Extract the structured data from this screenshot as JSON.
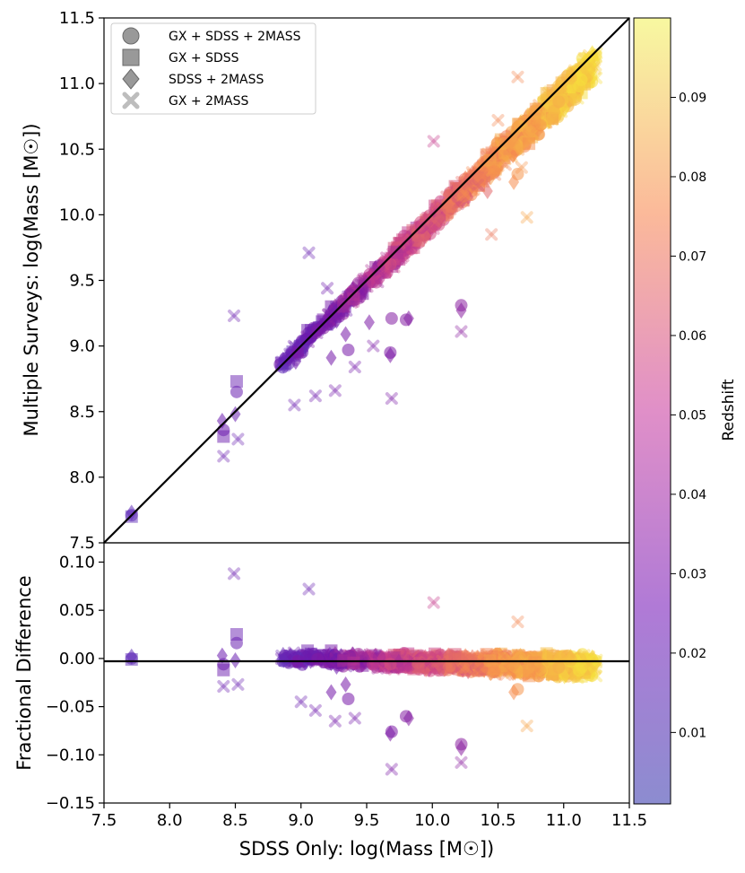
{
  "chart_data": [
    {
      "type": "scatter",
      "panel": "top",
      "ylabel": "Multiple Surveys: log(Mass [M☉])",
      "xlim": [
        7.5,
        11.5
      ],
      "ylim": [
        7.5,
        11.5
      ],
      "xticks": [
        "7.5",
        "8.0",
        "8.5",
        "9.0",
        "9.5",
        "10.0",
        "10.5",
        "11.0",
        "11.5"
      ],
      "yticks": [
        "7.5",
        "8.0",
        "8.5",
        "9.0",
        "9.5",
        "10.0",
        "10.5",
        "11.0",
        "11.5"
      ],
      "reference_line": "y = x",
      "legend": {
        "position": "top-left",
        "entries": [
          {
            "label": "GX + SDSS + 2MASS",
            "marker": "circle"
          },
          {
            "label": "GX + SDSS",
            "marker": "square"
          },
          {
            "label": "SDSS + 2MASS",
            "marker": "diamond"
          },
          {
            "label": "GX + 2MASS",
            "marker": "x"
          }
        ]
      },
      "series": [
        {
          "name": "GX + SDSS + 2MASS",
          "marker": "circle",
          "points": [
            [
              7.71,
              7.71,
              0.012
            ],
            [
              8.51,
              8.65,
              0.018
            ],
            [
              8.41,
              8.36,
              0.02
            ],
            [
              8.84,
              8.86,
              0.022
            ],
            [
              8.93,
              8.95,
              0.02
            ],
            [
              9.02,
              9.01,
              0.018
            ],
            [
              9.06,
              9.1,
              0.02
            ],
            [
              9.15,
              9.14,
              0.021
            ],
            [
              9.25,
              9.27,
              0.023
            ],
            [
              9.31,
              9.34,
              0.022
            ],
            [
              9.39,
              9.4,
              0.024
            ],
            [
              9.46,
              9.41,
              0.025
            ],
            [
              9.55,
              9.52,
              0.027
            ],
            [
              9.66,
              9.62,
              0.028
            ],
            [
              9.73,
              9.75,
              0.03
            ],
            [
              9.36,
              8.97,
              0.025
            ],
            [
              9.69,
              9.21,
              0.028
            ],
            [
              9.8,
              9.2,
              0.028
            ],
            [
              10.22,
              9.31,
              0.03
            ],
            [
              9.68,
              8.95,
              0.026
            ],
            [
              9.85,
              9.85,
              0.034
            ],
            [
              9.95,
              9.96,
              0.038
            ],
            [
              10.12,
              10.05,
              0.045
            ],
            [
              10.28,
              10.22,
              0.055
            ],
            [
              10.45,
              10.42,
              0.065
            ],
            [
              10.65,
              10.31,
              0.075
            ],
            [
              10.75,
              10.66,
              0.08
            ],
            [
              10.95,
              10.88,
              0.085
            ],
            [
              11.14,
              11.12,
              0.09
            ]
          ]
        },
        {
          "name": "GX + SDSS",
          "marker": "square",
          "points": [
            [
              7.71,
              7.7,
              0.012
            ],
            [
              8.51,
              8.73,
              0.018
            ],
            [
              8.41,
              8.31,
              0.02
            ],
            [
              8.85,
              8.87,
              0.022
            ],
            [
              9.05,
              9.12,
              0.02
            ],
            [
              9.23,
              9.3,
              0.024
            ],
            [
              9.42,
              9.38,
              0.025
            ],
            [
              9.6,
              9.57,
              0.028
            ],
            [
              9.88,
              9.9,
              0.035
            ],
            [
              10.05,
              10.02,
              0.042
            ],
            [
              10.33,
              10.3,
              0.06
            ],
            [
              10.58,
              10.55,
              0.07
            ],
            [
              10.88,
              10.85,
              0.085
            ]
          ]
        },
        {
          "name": "SDSS + 2MASS",
          "marker": "diamond",
          "points": [
            [
              7.71,
              7.73,
              0.012
            ],
            [
              8.4,
              8.43,
              0.02
            ],
            [
              8.5,
              8.48,
              0.018
            ],
            [
              8.96,
              8.88,
              0.022
            ],
            [
              9.23,
              8.91,
              0.024
            ],
            [
              9.34,
              9.09,
              0.025
            ],
            [
              9.68,
              8.93,
              0.026
            ],
            [
              9.82,
              9.21,
              0.028
            ],
            [
              10.22,
              9.27,
              0.03
            ],
            [
              9.52,
              9.18,
              0.026
            ],
            [
              10.02,
              9.92,
              0.04
            ],
            [
              10.42,
              10.18,
              0.06
            ],
            [
              10.62,
              10.25,
              0.072
            ],
            [
              10.95,
              10.84,
              0.085
            ]
          ]
        },
        {
          "name": "GX + 2MASS",
          "marker": "x",
          "points": [
            [
              8.41,
              8.16,
              0.02
            ],
            [
              8.52,
              8.29,
              0.018
            ],
            [
              8.49,
              9.23,
              0.02
            ],
            [
              9.06,
              9.71,
              0.018
            ],
            [
              9.69,
              8.6,
              0.026
            ],
            [
              9.26,
              8.66,
              0.024
            ],
            [
              8.95,
              8.55,
              0.02
            ],
            [
              9.11,
              8.62,
              0.022
            ],
            [
              9.41,
              8.84,
              0.024
            ],
            [
              10.22,
              9.11,
              0.03
            ],
            [
              10.01,
              10.56,
              0.045
            ],
            [
              10.65,
              11.05,
              0.07
            ],
            [
              10.68,
              10.36,
              0.075
            ],
            [
              10.72,
              9.98,
              0.08
            ],
            [
              10.45,
              9.85,
              0.065
            ],
            [
              9.55,
              9.0,
              0.026
            ],
            [
              9.2,
              9.44,
              0.022
            ],
            [
              10.85,
              10.7,
              0.088
            ],
            [
              11.05,
              11.0,
              0.092
            ],
            [
              10.5,
              10.72,
              0.07
            ]
          ]
        }
      ]
    },
    {
      "type": "scatter",
      "panel": "bottom",
      "ylabel": "Fractional Difference",
      "xlabel": "SDSS Only: log(Mass [M☉])",
      "xlim": [
        7.5,
        11.5
      ],
      "ylim": [
        -0.15,
        0.12
      ],
      "yticks": [
        "0.10",
        "0.05",
        "0.00",
        "−0.05",
        "−0.10",
        "−0.15"
      ],
      "reference_line": "y = 0",
      "series": [
        {
          "name": "GX + SDSS + 2MASS",
          "marker": "circle",
          "points": [
            [
              7.71,
              0.0,
              0.012
            ],
            [
              8.51,
              0.016,
              0.018
            ],
            [
              8.41,
              -0.006,
              0.02
            ],
            [
              9.06,
              0.004,
              0.02
            ],
            [
              9.36,
              -0.042,
              0.025
            ],
            [
              9.69,
              -0.076,
              0.026
            ],
            [
              9.8,
              -0.06,
              0.028
            ],
            [
              10.22,
              -0.089,
              0.03
            ],
            [
              9.55,
              -0.003,
              0.027
            ],
            [
              10.28,
              -0.006,
              0.055
            ],
            [
              10.65,
              -0.032,
              0.075
            ],
            [
              10.95,
              -0.007,
              0.085
            ]
          ]
        },
        {
          "name": "GX + SDSS",
          "marker": "square",
          "points": [
            [
              7.71,
              -0.001,
              0.012
            ],
            [
              8.51,
              0.025,
              0.018
            ],
            [
              8.41,
              -0.012,
              0.02
            ],
            [
              9.05,
              0.008,
              0.02
            ],
            [
              9.23,
              0.008,
              0.024
            ],
            [
              9.88,
              0.002,
              0.035
            ],
            [
              10.33,
              -0.003,
              0.06
            ],
            [
              10.88,
              -0.003,
              0.085
            ]
          ]
        },
        {
          "name": "SDSS + 2MASS",
          "marker": "diamond",
          "points": [
            [
              7.71,
              0.002,
              0.012
            ],
            [
              8.4,
              0.003,
              0.02
            ],
            [
              8.5,
              -0.002,
              0.018
            ],
            [
              9.23,
              -0.035,
              0.024
            ],
            [
              9.34,
              -0.027,
              0.025
            ],
            [
              9.68,
              -0.078,
              0.026
            ],
            [
              9.82,
              -0.062,
              0.028
            ],
            [
              10.22,
              -0.093,
              0.03
            ],
            [
              10.62,
              -0.035,
              0.072
            ]
          ]
        },
        {
          "name": "GX + 2MASS",
          "marker": "x",
          "points": [
            [
              8.41,
              -0.029,
              0.02
            ],
            [
              8.52,
              -0.027,
              0.018
            ],
            [
              8.49,
              0.088,
              0.02
            ],
            [
              9.06,
              0.072,
              0.018
            ],
            [
              9.69,
              -0.115,
              0.026
            ],
            [
              9.26,
              -0.065,
              0.024
            ],
            [
              9.11,
              -0.054,
              0.022
            ],
            [
              10.22,
              -0.108,
              0.03
            ],
            [
              10.01,
              0.058,
              0.045
            ],
            [
              10.65,
              0.038,
              0.07
            ],
            [
              10.72,
              -0.07,
              0.08
            ],
            [
              9.41,
              -0.062,
              0.024
            ],
            [
              9.0,
              -0.045,
              0.02
            ],
            [
              11.05,
              -0.005,
              0.092
            ]
          ]
        }
      ]
    },
    {
      "type": "colorbar",
      "label": "Redshift",
      "colormap": "plasma",
      "range": [
        0.001,
        0.1
      ],
      "ticks": [
        "0.09",
        "0.08",
        "0.07",
        "0.06",
        "0.05",
        "0.04",
        "0.03",
        "0.02",
        "0.01"
      ]
    }
  ]
}
